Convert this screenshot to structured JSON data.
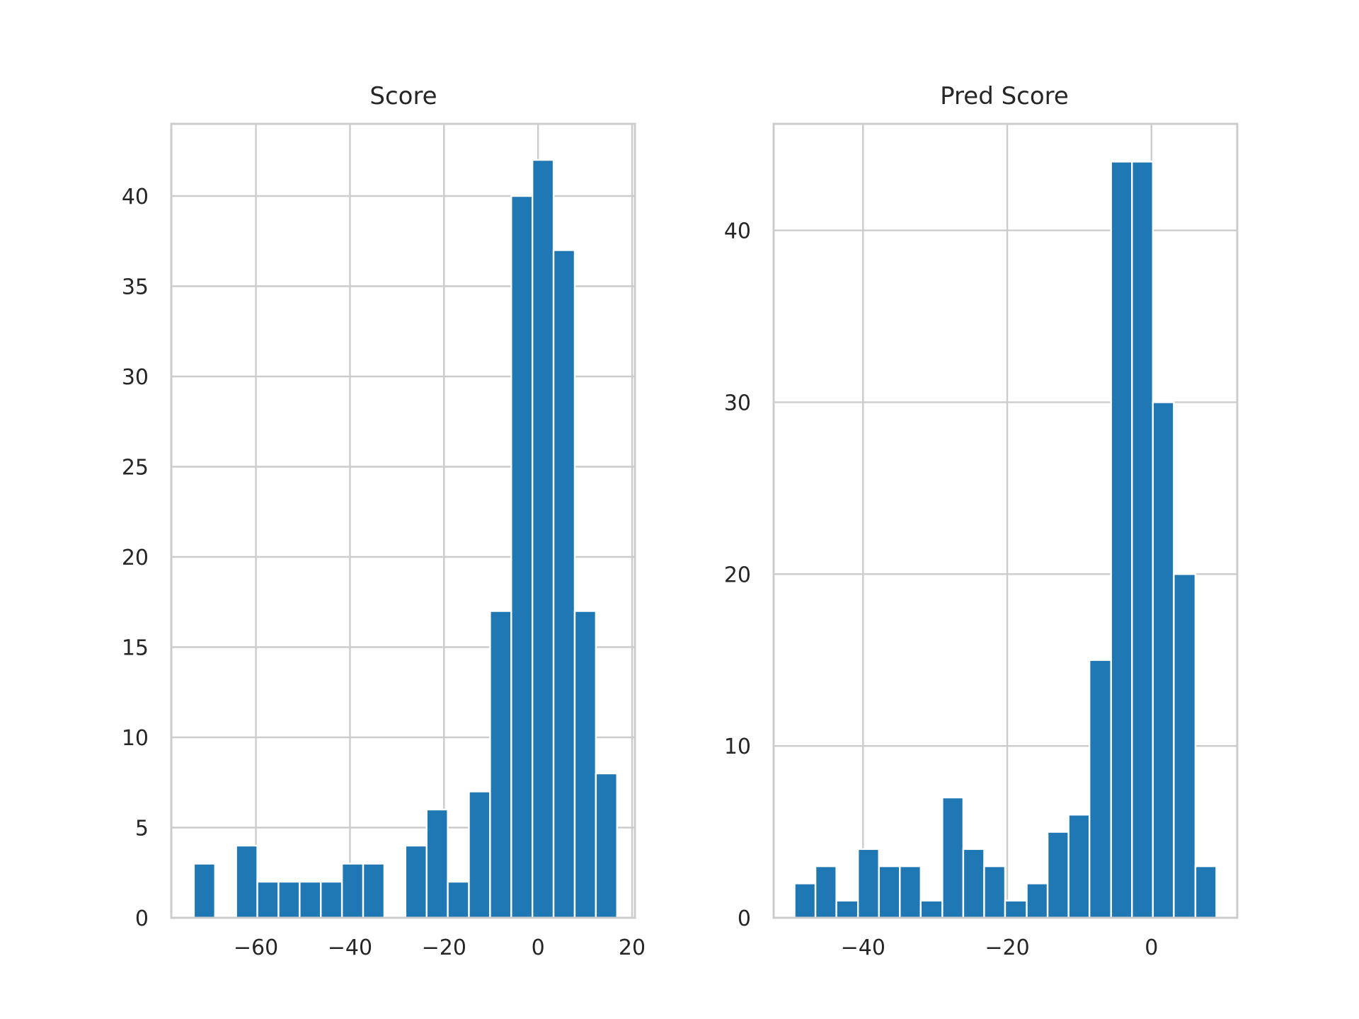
{
  "chart_data": [
    {
      "type": "bar",
      "title": "Score",
      "xlabel": "",
      "ylabel": "",
      "xlim": [
        -78,
        20.6
      ],
      "ylim": [
        0,
        44
      ],
      "xticks": [
        -60,
        -40,
        -20,
        0,
        20
      ],
      "yticks": [
        0,
        5,
        10,
        15,
        20,
        25,
        30,
        35,
        40
      ],
      "bin_edges": [
        -73.2,
        -68.7,
        -64.2,
        -59.7,
        -55.2,
        -50.7,
        -46.2,
        -41.7,
        -37.2,
        -32.7,
        -28.2,
        -23.7,
        -19.2,
        -14.7,
        -10.2,
        -5.7,
        -1.2,
        3.3,
        7.8,
        12.3,
        16.8
      ],
      "values": [
        3,
        0,
        4,
        2,
        2,
        2,
        2,
        3,
        3,
        0,
        4,
        6,
        2,
        7,
        17,
        40,
        42,
        37,
        17,
        8
      ],
      "grid": true,
      "color": "#1f77b4"
    },
    {
      "type": "bar",
      "title": "Pred Score",
      "xlabel": "",
      "ylabel": "",
      "xlim": [
        -52.4,
        11.9
      ],
      "ylim": [
        0,
        46.2
      ],
      "xticks": [
        -40,
        -20,
        0
      ],
      "yticks": [
        0,
        10,
        20,
        30,
        40
      ],
      "bin_edges": [
        -49.5,
        -46.6,
        -43.7,
        -40.7,
        -37.8,
        -34.9,
        -32.0,
        -29.0,
        -26.1,
        -23.2,
        -20.3,
        -17.3,
        -14.4,
        -11.5,
        -8.6,
        -5.6,
        -2.7,
        0.2,
        3.1,
        6.1,
        9.0
      ],
      "values": [
        2,
        3,
        1,
        4,
        3,
        3,
        1,
        7,
        4,
        3,
        1,
        2,
        5,
        6,
        15,
        44,
        44,
        30,
        20,
        3
      ],
      "grid": true,
      "color": "#1f77b4"
    }
  ]
}
